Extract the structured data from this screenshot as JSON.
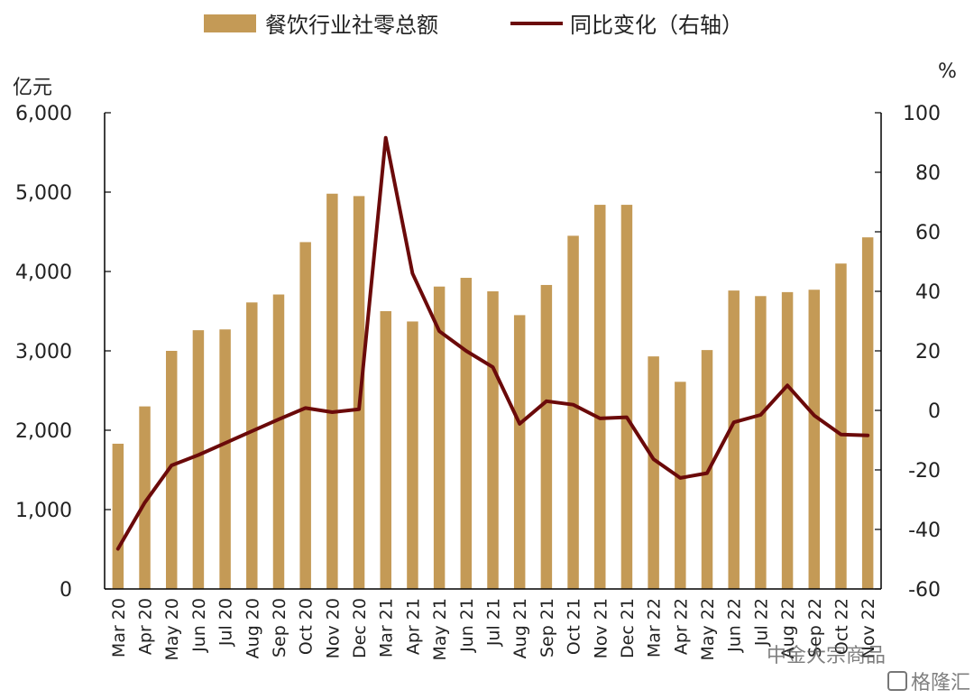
{
  "chart_data": {
    "type": "bar",
    "categories": [
      "Mar 20",
      "Apr 20",
      "May 20",
      "Jun 20",
      "Jul 20",
      "Aug 20",
      "Sep 20",
      "Oct 20",
      "Nov 20",
      "Dec 20",
      "Mar 21",
      "Apr 21",
      "May 21",
      "Jun 21",
      "Jul 21",
      "Aug 21",
      "Sep 21",
      "Oct 21",
      "Nov 21",
      "Dec 21",
      "Mar 22",
      "Apr 22",
      "May 22",
      "Jun 22",
      "Jul 22",
      "Aug 22",
      "Sep 22",
      "Oct 22",
      "Nov 22"
    ],
    "series": [
      {
        "name": "餐饮行业社零总额",
        "type": "bar",
        "axis": "left",
        "color": "#C49A56",
        "values": [
          1830,
          2300,
          3000,
          3260,
          3270,
          3610,
          3710,
          4370,
          4980,
          4950,
          3500,
          3370,
          3810,
          3920,
          3750,
          3450,
          3830,
          4450,
          4840,
          4840,
          2930,
          2610,
          3010,
          3760,
          3690,
          3740,
          3770,
          4100,
          4430
        ]
      },
      {
        "name": "同比变化（右轴）",
        "type": "line",
        "axis": "right",
        "color": "#6B0A0A",
        "values": [
          -46.5,
          -31,
          -18.5,
          -15,
          -11,
          -7,
          -3,
          0.8,
          -0.6,
          0.4,
          91.6,
          46,
          26.6,
          20,
          14.5,
          -4.5,
          3.1,
          1.9,
          -2.7,
          -2.3,
          -16.4,
          -22.7,
          -21.1,
          -4,
          -1.5,
          8.4,
          -1.7,
          -8.1,
          -8.4
        ]
      }
    ],
    "y_left": {
      "unit_label": "亿元",
      "min": 0,
      "max": 6000,
      "ticks": [
        0,
        1000,
        2000,
        3000,
        4000,
        5000,
        6000
      ],
      "tick_labels": [
        "0",
        "1,000",
        "2,000",
        "3,000",
        "4,000",
        "5,000",
        "6,000"
      ]
    },
    "y_right": {
      "unit_label": "%",
      "min": -60,
      "max": 100,
      "ticks": [
        -60,
        -40,
        -20,
        0,
        20,
        40,
        60,
        80,
        100
      ],
      "tick_labels": [
        "-60",
        "-40",
        "-20",
        "0",
        "20",
        "40",
        "60",
        "80",
        "100"
      ]
    },
    "legend": {
      "position": "top"
    },
    "grid": false,
    "watermark": [
      "中金大宗商品",
      "格隆汇"
    ]
  }
}
